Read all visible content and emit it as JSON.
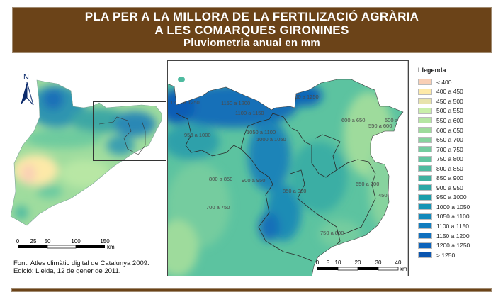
{
  "header": {
    "line1": "PLA PER A LA MILLORA DE LA FERTILIZACIÓ AGRÀRIA",
    "line2": "A LES COMARQUES GIRONINES",
    "line3": "Pluviometria anual en mm",
    "color": "#6b4318"
  },
  "north_arrow": {
    "label": "N"
  },
  "overview_map": {
    "scale_ticks": [
      "0",
      "25",
      "50",
      "100",
      "150"
    ],
    "scale_unit": "km"
  },
  "detail_map": {
    "scale_ticks": [
      "0",
      "5",
      "10",
      "20",
      "30",
      "40"
    ],
    "scale_unit": "km",
    "isohyet_labels": [
      "1200 a 1250",
      "1150 a 1200",
      "1100 a 1150",
      "1200 a 1250",
      "950 a 1000",
      "1050 a 1100",
      "1000 a 1050",
      "600 a 650",
      "550 a 600",
      "500 a 550",
      "800 a 850",
      "900 a 950",
      "850 a 900",
      "650 a 700",
      "450 a 500",
      "700 a 750",
      "750 a 800"
    ]
  },
  "source": {
    "line1": "Font: Atles climàtic digital de Catalunya 2009.",
    "line2": "Edició: Lleida, 12 de gener de 2011."
  },
  "legend": {
    "title": "Llegenda",
    "items": [
      {
        "label": "< 400",
        "color": "#f9cfb5"
      },
      {
        "label": "400 a 450",
        "color": "#fde9a8"
      },
      {
        "label": "450 a 500",
        "color": "#e8e3ac"
      },
      {
        "label": "500 a 550",
        "color": "#c9efaa"
      },
      {
        "label": "550 a 600",
        "color": "#b5e6a3"
      },
      {
        "label": "600 a 650",
        "color": "#9edb9c"
      },
      {
        "label": "650 a 700",
        "color": "#87d39e"
      },
      {
        "label": "700 a 750",
        "color": "#74cc9f"
      },
      {
        "label": "750 a 800",
        "color": "#62c5a0"
      },
      {
        "label": "800 a 850",
        "color": "#4fbba0"
      },
      {
        "label": "850 a 900",
        "color": "#3fb1a0"
      },
      {
        "label": "900 a 950",
        "color": "#2aa8a6"
      },
      {
        "label": "950 a 1000",
        "color": "#1a9eaa"
      },
      {
        "label": "1000 a 1050",
        "color": "#1594b5"
      },
      {
        "label": "1050 a 1100",
        "color": "#1189bb"
      },
      {
        "label": "1100 a 1150",
        "color": "#117dbf"
      },
      {
        "label": "1150 a 1200",
        "color": "#0f70bf"
      },
      {
        "label": "1200 a 1250",
        "color": "#0c63bb"
      },
      {
        "label": "> 1250",
        "color": "#0a55b0"
      }
    ]
  }
}
